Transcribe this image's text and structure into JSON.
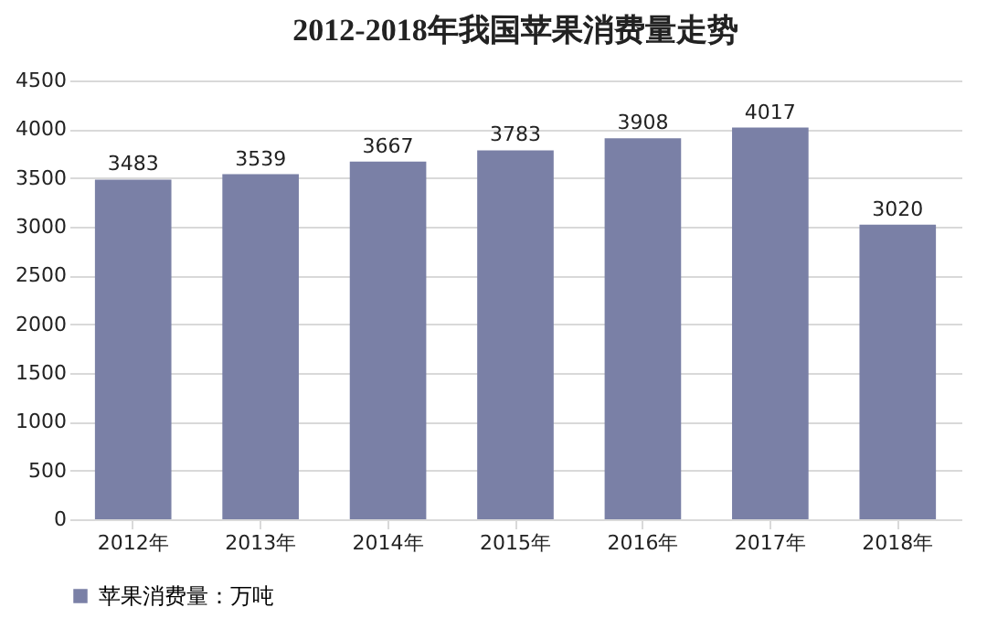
{
  "chart_data": {
    "type": "bar",
    "title": "2012-2018年我国苹果消费量走势",
    "categories": [
      "2012年",
      "2013年",
      "2014年",
      "2015年",
      "2016年",
      "2017年",
      "2018年"
    ],
    "series": [
      {
        "name": "苹果消费量：万吨",
        "color": "#7a80a6",
        "values": [
          3483,
          3539,
          3667,
          3783,
          3908,
          4017,
          3020
        ]
      }
    ],
    "ylim": [
      0,
      4500
    ],
    "yticks": [
      0,
      500,
      1000,
      1500,
      2000,
      2500,
      3000,
      3500,
      4000,
      4500
    ],
    "grid": "y",
    "legend": "bottom",
    "data_labels": true
  }
}
